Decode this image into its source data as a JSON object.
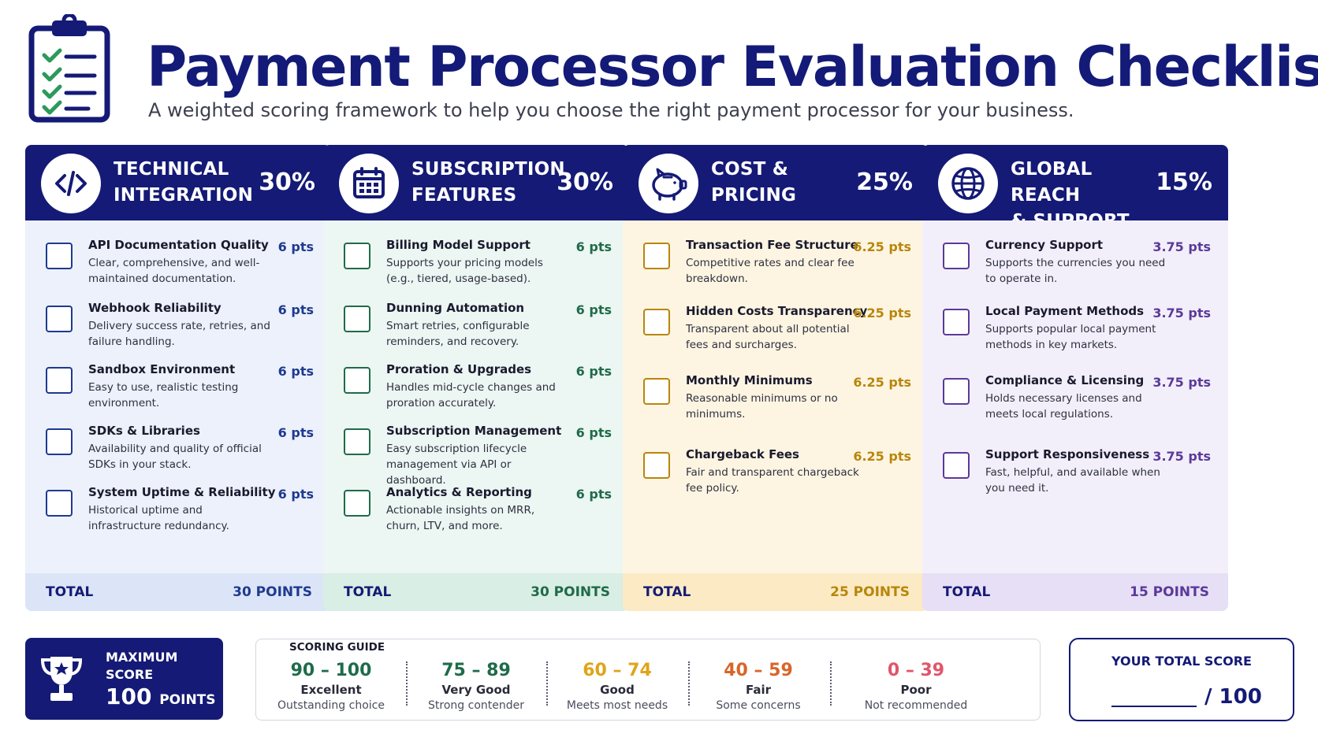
{
  "header": {
    "title": "Payment Processor Evaluation Checklist",
    "subtitle": "A weighted scoring framework to help you choose the right payment processor for your business."
  },
  "cards": [
    {
      "title_line1": "TECHNICAL",
      "title_line2": "INTEGRATION",
      "weight": "30%",
      "icon": "code-icon",
      "accent": "#1f3a8f",
      "body_bg": "#ecf1fb",
      "foot_bg": "#dbe5f7",
      "items": [
        {
          "title": "API Documentation Quality",
          "desc": "Clear, comprehensive, and well-maintained documentation.",
          "pts": "6 pts"
        },
        {
          "title": "Webhook Reliability",
          "desc": "Delivery success rate, retries, and failure handling.",
          "pts": "6 pts"
        },
        {
          "title": "Sandbox Environment",
          "desc": "Easy to use, realistic testing environment.",
          "pts": "6 pts"
        },
        {
          "title": "SDKs & Libraries",
          "desc": "Availability and quality of official SDKs in your stack.",
          "pts": "6 pts"
        },
        {
          "title": "System Uptime & Reliability",
          "desc": "Historical uptime and infrastructure redundancy.",
          "pts": "6 pts"
        }
      ],
      "total_label": "TOTAL",
      "total_value": "30 POINTS"
    },
    {
      "title_line1": "SUBSCRIPTION",
      "title_line2": "FEATURES",
      "weight": "30%",
      "icon": "calendar-icon",
      "accent": "#1f6b4a",
      "body_bg": "#ecf6f2",
      "foot_bg": "#d9eee4",
      "items": [
        {
          "title": "Billing Model Support",
          "desc": "Supports your pricing models (e.g., tiered, usage-based).",
          "pts": "6 pts"
        },
        {
          "title": "Dunning Automation",
          "desc": "Smart retries, configurable reminders, and recovery.",
          "pts": "6 pts"
        },
        {
          "title": "Proration & Upgrades",
          "desc": "Handles mid-cycle changes and proration accurately.",
          "pts": "6 pts"
        },
        {
          "title": "Subscription Management",
          "desc": "Easy subscription lifecycle management via API or dashboard.",
          "pts": "6 pts"
        },
        {
          "title": "Analytics & Reporting",
          "desc": "Actionable insights on MRR, churn, LTV, and more.",
          "pts": "6 pts"
        }
      ],
      "total_label": "TOTAL",
      "total_value": "30 POINTS"
    },
    {
      "title_line1": "COST &",
      "title_line2": "PRICING",
      "weight": "25%",
      "icon": "piggy-bank-icon",
      "accent": "#b8860b",
      "body_bg": "#fdf5e2",
      "foot_bg": "#fbeac4",
      "items": [
        {
          "title": "Transaction Fee Structure",
          "desc": "Competitive rates and clear fee breakdown.",
          "pts": "6.25 pts"
        },
        {
          "title": "Hidden Costs Transparency",
          "desc": "Transparent about all potential fees and surcharges.",
          "pts": "6.25 pts"
        },
        {
          "title": "Monthly Minimums",
          "desc": "Reasonable minimums or no minimums.",
          "pts": "6.25 pts"
        },
        {
          "title": "Chargeback Fees",
          "desc": "Fair and transparent chargeback fee policy.",
          "pts": "6.25 pts"
        }
      ],
      "total_label": "TOTAL",
      "total_value": "25 POINTS"
    },
    {
      "title_line1": "GLOBAL REACH",
      "title_line2": "& SUPPORT",
      "weight": "15%",
      "icon": "globe-icon",
      "accent": "#5a3a9a",
      "body_bg": "#f3effa",
      "foot_bg": "#e7dff5",
      "items": [
        {
          "title": "Currency Support",
          "desc": "Supports the currencies you need to operate in.",
          "pts": "3.75 pts"
        },
        {
          "title": "Local Payment Methods",
          "desc": "Supports popular local payment methods in key markets.",
          "pts": "3.75 pts"
        },
        {
          "title": "Compliance & Licensing",
          "desc": "Holds necessary licenses and meets local regulations.",
          "pts": "3.75 pts"
        },
        {
          "title": "Support Responsiveness",
          "desc": "Fast, helpful, and available when you need it.",
          "pts": "3.75 pts"
        }
      ],
      "total_label": "TOTAL",
      "total_value": "15 POINTS"
    }
  ],
  "max_score": {
    "label_line1": "MAXIMUM",
    "label_line2": "SCORE",
    "value": "100",
    "unit": "POINTS"
  },
  "scoring_guide": {
    "title": "SCORING GUIDE",
    "bands": [
      {
        "range": "90 – 100",
        "label": "Excellent",
        "desc": "Outstanding choice",
        "color": "#1f6b4a"
      },
      {
        "range": "75 – 89",
        "label": "Very Good",
        "desc": "Strong contender",
        "color": "#1f6b4a"
      },
      {
        "range": "60 – 74",
        "label": "Good",
        "desc": "Meets most needs",
        "color": "#e0a418"
      },
      {
        "range": "40 – 59",
        "label": "Fair",
        "desc": "Some concerns",
        "color": "#d8652a"
      },
      {
        "range": "0 – 39",
        "label": "Poor",
        "desc": "Not recommended",
        "color": "#e0566a"
      }
    ]
  },
  "total_score": {
    "label": "YOUR TOTAL SCORE",
    "max": "/ 100"
  }
}
